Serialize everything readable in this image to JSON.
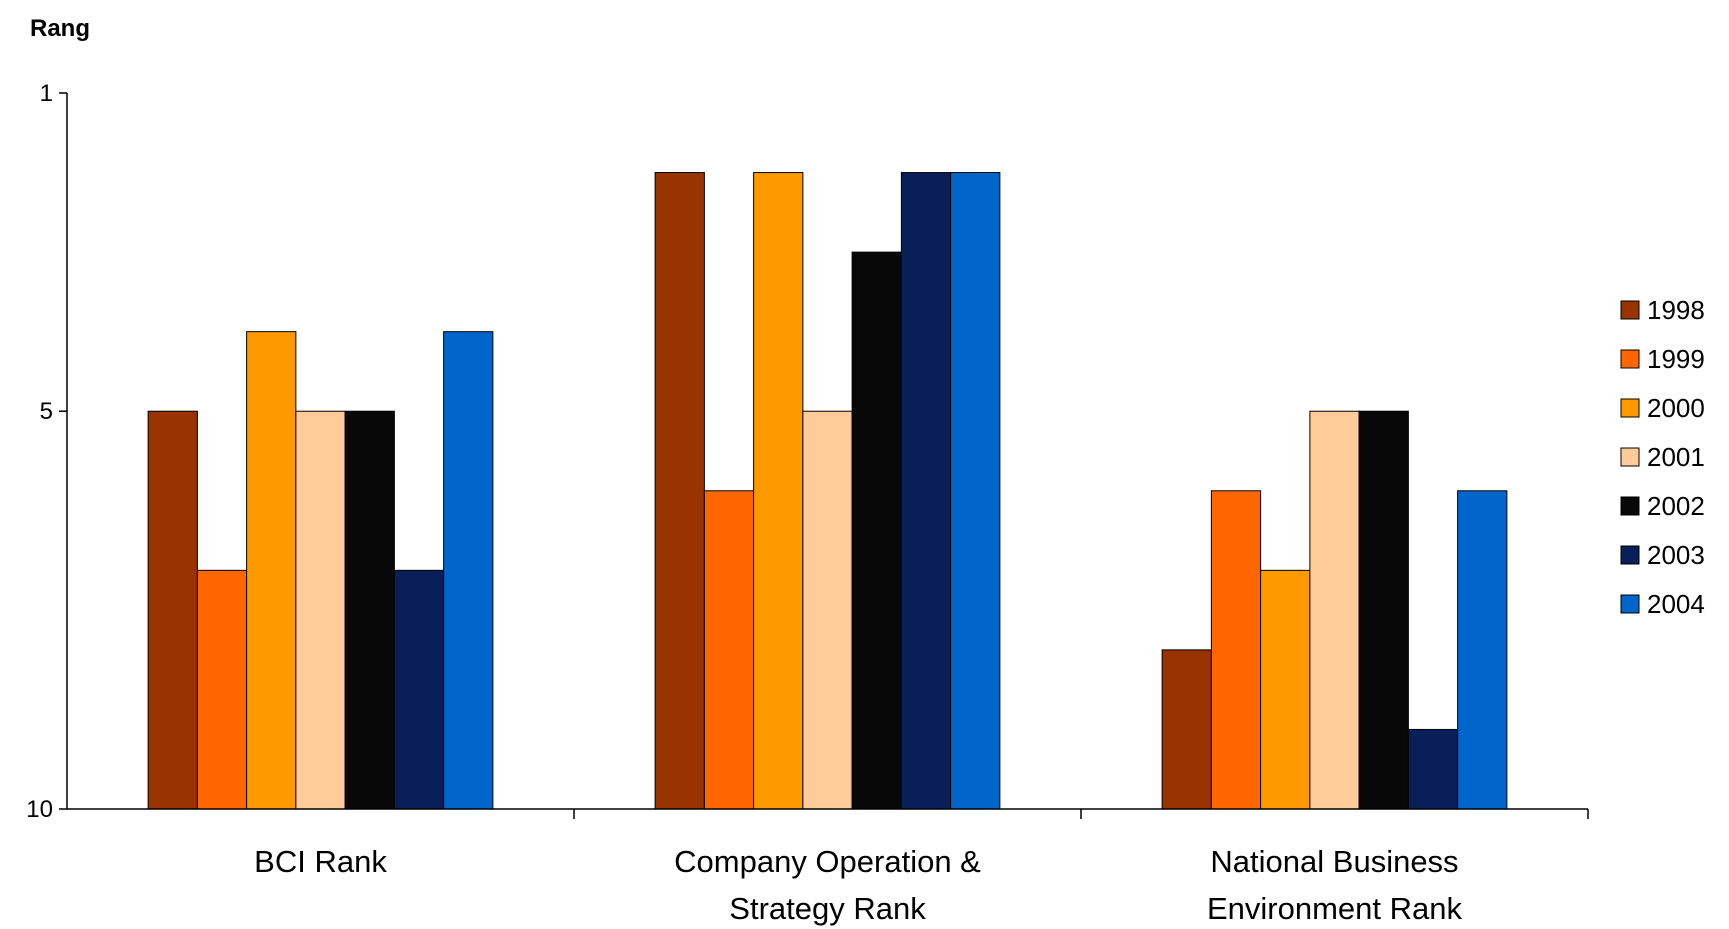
{
  "chart_data": {
    "type": "bar",
    "ylabel": "Rang",
    "xlabel": "",
    "yticks": [
      1,
      5,
      10
    ],
    "ylim": [
      10,
      1
    ],
    "y_axis_reversed": true,
    "legend_position": "right",
    "grid": false,
    "categories": [
      [
        "BCI Rank"
      ],
      [
        "Company Operation &",
        "Strategy Rank"
      ],
      [
        "National Business",
        "Environment Rank"
      ]
    ],
    "series": [
      {
        "name": "1998",
        "color": "#993300",
        "values": [
          5,
          2,
          8
        ]
      },
      {
        "name": "1999",
        "color": "#FF6600",
        "values": [
          7,
          6,
          6
        ]
      },
      {
        "name": "2000",
        "color": "#FF9900",
        "values": [
          4,
          2,
          7
        ]
      },
      {
        "name": "2001",
        "color": "#FFCC99",
        "values": [
          5,
          5,
          5
        ]
      },
      {
        "name": "2002",
        "color": "#080808",
        "values": [
          5,
          3,
          5
        ]
      },
      {
        "name": "2003",
        "color": "#0A1E5A",
        "values": [
          7,
          2,
          9
        ]
      },
      {
        "name": "2004",
        "color": "#0066CC",
        "values": [
          4,
          2,
          6
        ]
      }
    ]
  }
}
